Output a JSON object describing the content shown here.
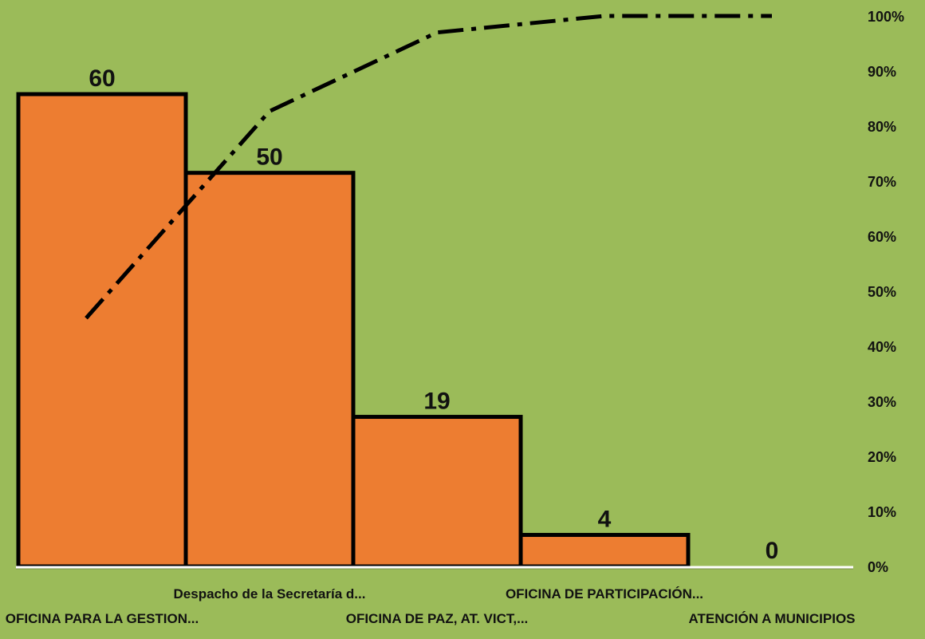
{
  "chart_data": {
    "type": "bar",
    "title": "",
    "xlabel": "",
    "ylabel": "",
    "categories": [
      "OFICINA PARA LA GESTION...",
      "Despacho de la Secretaría d...",
      "OFICINA DE PAZ, AT. VICT,...",
      "OFICINA DE PARTICIPACIÓN...",
      "ATENCIÓN A MUNICIPIOS"
    ],
    "values": [
      60,
      50,
      19,
      4,
      0
    ],
    "value_labels": [
      "60",
      "50",
      "19",
      "4",
      "0"
    ],
    "ylim": [
      0,
      70
    ],
    "cumulative_percent": [
      45.1,
      82.7,
      97.0,
      100,
      100
    ],
    "y2_ticks": [
      "0%",
      "10%",
      "20%",
      "30%",
      "40%",
      "50%",
      "60%",
      "70%",
      "80%",
      "90%",
      "100%"
    ],
    "y2lim": [
      0,
      100
    ],
    "bar_color": "#ed7d31",
    "line_color": "#000000",
    "line_style": "dash-dot",
    "background": "#9bbb59",
    "grid": false,
    "legend": "none"
  }
}
